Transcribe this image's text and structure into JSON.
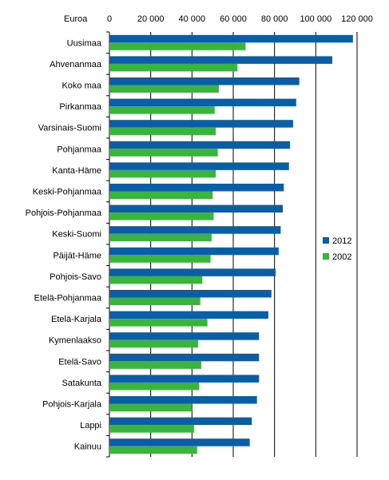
{
  "chart_data": {
    "type": "bar",
    "orientation": "horizontal",
    "unit_label": "Euroa",
    "xlim": [
      0,
      120000
    ],
    "xticks": [
      0,
      20000,
      40000,
      60000,
      80000,
      100000,
      120000
    ],
    "xtick_labels": [
      "0",
      "20 000",
      "40 000",
      "60 000",
      "80 000",
      "100 000",
      "120 000"
    ],
    "grid": "vertical",
    "legend_position": "right",
    "categories": [
      "Uusimaa",
      "Ahvenanmaa",
      "Koko maa",
      "Pirkanmaa",
      "Varsinais-Suomi",
      "Pohjanmaa",
      "Kanta-Häme",
      "Keski-Pohjanmaa",
      "Pohjois-Pohjanmaa",
      "Keski-Suomi",
      "Päijät-Häme",
      "Pohjois-Savo",
      "Etelä-Pohjanmaa",
      "Etelä-Karjala",
      "Kymenlaakso",
      "Etelä-Savo",
      "Satakunta",
      "Pohjois-Karjala",
      "Lappi",
      "Kainuu"
    ],
    "series": [
      {
        "name": "2012",
        "color": "#0a5ea6",
        "values": [
          118000,
          108000,
          92000,
          90500,
          89000,
          87500,
          87000,
          84500,
          84000,
          83000,
          82000,
          80500,
          78500,
          77000,
          72500,
          72500,
          72500,
          71500,
          69000,
          68000
        ]
      },
      {
        "name": "2002",
        "color": "#3ab43c",
        "values": [
          66000,
          62000,
          53000,
          51000,
          51500,
          52500,
          51500,
          50000,
          50500,
          49500,
          49000,
          45000,
          44000,
          47500,
          43000,
          44500,
          43500,
          40000,
          41000,
          42500
        ]
      }
    ]
  }
}
